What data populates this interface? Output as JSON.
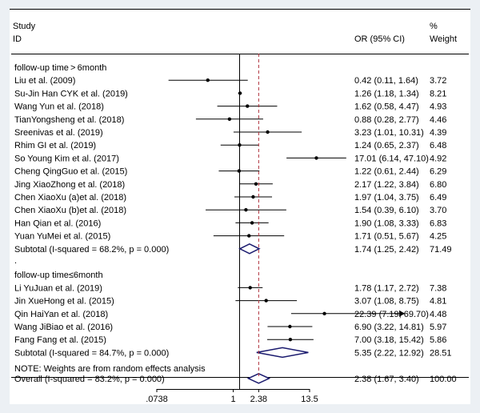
{
  "chart_data": {
    "type": "forest",
    "x_scale": "log",
    "xlim": [
      0.0738,
      13.5
    ],
    "x_ticks": [
      ".0738",
      "1",
      "2.38",
      "13.5"
    ],
    "reference_line": 1,
    "overall_line": 2.38,
    "headers": {
      "study_line1": "Study",
      "study_line2": "ID",
      "or_label": "OR (95% CI)",
      "weight_line1": "%",
      "weight_line2": "Weight"
    },
    "groups": [
      {
        "label": "follow-up time > 6month",
        "studies": [
          {
            "study": "Liu et al. (2009)",
            "or": 0.42,
            "lo": 0.11,
            "hi": 1.64,
            "ci_text": "0.42 (0.11, 1.64)",
            "weight": "3.72"
          },
          {
            "study": "Su-Jin Han CYK et al. (2019)",
            "or": 1.26,
            "lo": 1.18,
            "hi": 1.34,
            "ci_text": "1.26 (1.18, 1.34)",
            "weight": "8.21"
          },
          {
            "study": "Wang Yun et al. (2018)",
            "or": 1.62,
            "lo": 0.58,
            "hi": 4.47,
            "ci_text": "1.62 (0.58, 4.47)",
            "weight": "4.93"
          },
          {
            "study": "TianYongsheng et al. (2018)",
            "or": 0.88,
            "lo": 0.28,
            "hi": 2.77,
            "ci_text": "0.88 (0.28, 2.77)",
            "weight": "4.46"
          },
          {
            "study": "Sreenivas et al. (2019)",
            "or": 3.23,
            "lo": 1.01,
            "hi": 10.31,
            "ci_text": "3.23 (1.01, 10.31)",
            "weight": "4.39"
          },
          {
            "study": "Rhim GI et al. (2019)",
            "or": 1.24,
            "lo": 0.65,
            "hi": 2.37,
            "ci_text": "1.24 (0.65, 2.37)",
            "weight": "6.48"
          },
          {
            "study": "So Young Kim et al. (2017)",
            "or": 17.01,
            "lo": 6.14,
            "hi": 47.1,
            "ci_text": "17.01 (6.14, 47.10)",
            "weight": "4.92"
          },
          {
            "study": "Cheng QingGuo et al. (2015)",
            "or": 1.22,
            "lo": 0.61,
            "hi": 2.44,
            "ci_text": "1.22 (0.61, 2.44)",
            "weight": "6.29"
          },
          {
            "study": "Jing XiaoZhong et al. (2018)",
            "or": 2.17,
            "lo": 1.22,
            "hi": 3.84,
            "ci_text": "2.17 (1.22, 3.84)",
            "weight": "6.80"
          },
          {
            "study": "Chen XiaoXu (a)et al. (2018)",
            "or": 1.97,
            "lo": 1.04,
            "hi": 3.75,
            "ci_text": "1.97 (1.04, 3.75)",
            "weight": "6.49"
          },
          {
            "study": "Chen XiaoXu (b)et al. (2018)",
            "or": 1.54,
            "lo": 0.39,
            "hi": 6.1,
            "ci_text": "1.54 (0.39, 6.10)",
            "weight": "3.70"
          },
          {
            "study": "Han Qian et al. (2016)",
            "or": 1.9,
            "lo": 1.08,
            "hi": 3.33,
            "ci_text": "1.90 (1.08, 3.33)",
            "weight": "6.83"
          },
          {
            "study": "Yuan YuMei et al. (2015)",
            "or": 1.71,
            "lo": 0.51,
            "hi": 5.67,
            "ci_text": "1.71 (0.51, 5.67)",
            "weight": "4.25"
          }
        ],
        "subtotal": {
          "label": "Subtotal  (I-squared = 68.2%, p = 0.000)",
          "or": 1.74,
          "lo": 1.25,
          "hi": 2.42,
          "ci_text": "1.74 (1.25, 2.42)",
          "weight": "71.49"
        }
      },
      {
        "label": "follow-up time≤6month",
        "studies": [
          {
            "study": "Li YuJuan et al. (2019)",
            "or": 1.78,
            "lo": 1.17,
            "hi": 2.72,
            "ci_text": "1.78 (1.17, 2.72)",
            "weight": "7.38"
          },
          {
            "study": "Jin XueHong et al. (2015)",
            "or": 3.07,
            "lo": 1.08,
            "hi": 8.75,
            "ci_text": "3.07 (1.08, 8.75)",
            "weight": "4.81"
          },
          {
            "study": "Qin HaiYan et al. (2018)",
            "or": 22.39,
            "lo": 7.19,
            "hi": 69.7,
            "ci_text": "22.39 (7.19, 69.70)",
            "weight": "4.48"
          },
          {
            "study": "Wang JiBiao et al. (2016)",
            "or": 6.9,
            "lo": 3.22,
            "hi": 14.81,
            "ci_text": "6.90 (3.22, 14.81)",
            "weight": "5.97"
          },
          {
            "study": "Fang Fang et al. (2015)",
            "or": 7.0,
            "lo": 3.18,
            "hi": 15.42,
            "ci_text": "7.00 (3.18, 15.42)",
            "weight": "5.86"
          }
        ],
        "subtotal": {
          "label": "Subtotal  (I-squared = 84.7%, p = 0.000)",
          "or": 5.35,
          "lo": 2.22,
          "hi": 12.92,
          "ci_text": "5.35 (2.22, 12.92)",
          "weight": "28.51"
        }
      }
    ],
    "separator": ".",
    "overall": {
      "label": "Overall  (I-squared = 83.2%, p = 0.000)",
      "or": 2.38,
      "lo": 1.67,
      "hi": 3.4,
      "ci_text": "2.38 (1.67, 3.40)",
      "weight": "100.00"
    },
    "note": "NOTE: Weights are from random effects analysis",
    "colors": {
      "background": "#ecf0f4",
      "panel": "#ffffff",
      "diamond": "#1a1a6e",
      "overall_line": "#b0303a",
      "marker": "#000000"
    }
  }
}
